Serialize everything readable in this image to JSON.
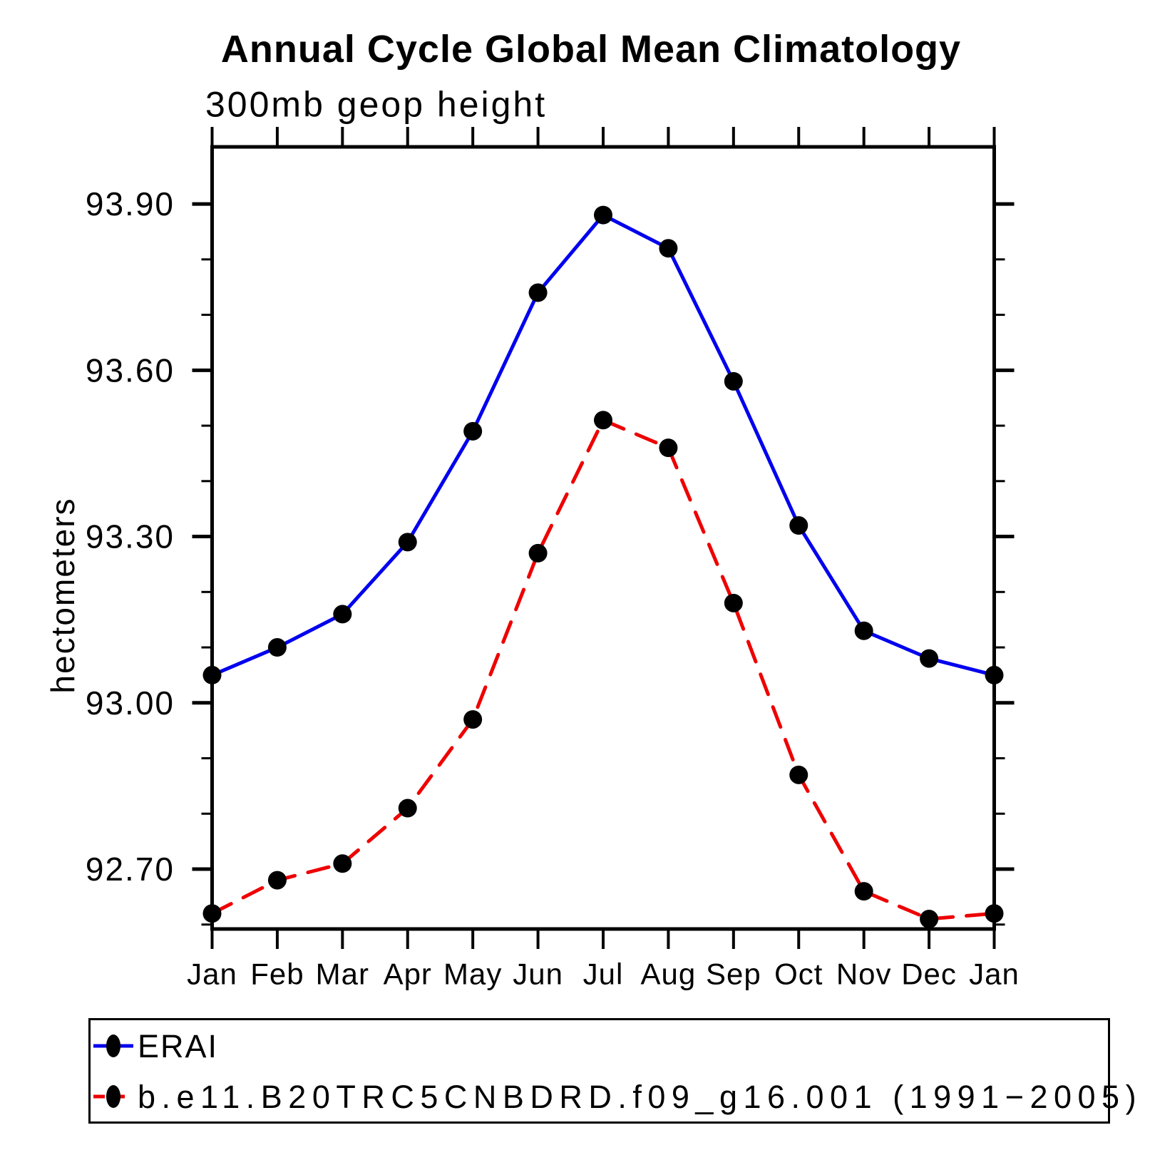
{
  "page": {
    "background": "#ffffff"
  },
  "header": {
    "title": "Annual Cycle Global Mean Climatology",
    "subtitle": "300mb geop height"
  },
  "axes": {
    "y_axis_label": "hectometers",
    "y_major_tick_labels": [
      "93.90",
      "93.60",
      "93.30",
      "93.00",
      "92.70"
    ],
    "x_tick_labels": [
      "Jan",
      "Feb",
      "Mar",
      "Apr",
      "May",
      "Jun",
      "Jul",
      "Aug",
      "Sep",
      "Oct",
      "Nov",
      "Dec",
      "Jan"
    ]
  },
  "legend": {
    "entries": [
      {
        "label": "ERAI",
        "line_style": "solid",
        "color": "#0000ee",
        "marker": "filled-circle-icon"
      },
      {
        "label": "b.e11.B20TRC5CNBDRD.f09_g16.001 (1991−2005)",
        "line_style": "dashed",
        "color": "#ee0000",
        "marker": "filled-circle-icon"
      }
    ]
  },
  "colors": {
    "erai_line": "#0000ee",
    "model_line": "#ee0000",
    "marker": "#000000",
    "axis": "#000000",
    "background": "#ffffff"
  },
  "chart_data": {
    "type": "line",
    "title": "Annual Cycle Global Mean Climatology",
    "subtitle": "300mb geop height",
    "xlabel": "",
    "ylabel": "hectometers",
    "categories": [
      "Jan",
      "Feb",
      "Mar",
      "Apr",
      "May",
      "Jun",
      "Jul",
      "Aug",
      "Sep",
      "Oct",
      "Nov",
      "Dec",
      "Jan"
    ],
    "series": [
      {
        "name": "ERAI",
        "color": "#0000ee",
        "style": "solid",
        "marker": "filled-circle",
        "values": [
          93.05,
          93.1,
          93.16,
          93.29,
          93.49,
          93.74,
          93.88,
          93.82,
          93.58,
          93.32,
          93.13,
          93.08,
          93.05
        ]
      },
      {
        "name": "b.e11.B20TRC5CNBDRD.f09_g16.001 (1991−2005)",
        "color": "#ee0000",
        "style": "dashed",
        "marker": "filled-circle",
        "values": [
          92.62,
          92.68,
          92.71,
          92.81,
          92.97,
          93.27,
          93.51,
          93.46,
          93.18,
          92.87,
          92.66,
          92.61,
          92.62
        ]
      }
    ],
    "ylim": [
      92.592,
      94.003
    ],
    "yticks_major": [
      93.9,
      93.6,
      93.3,
      93.0,
      92.7
    ],
    "yticks_minor": [
      93.8,
      93.7,
      93.5,
      93.4,
      93.2,
      93.1,
      92.9,
      92.8,
      92.6
    ],
    "grid": false,
    "legend_position": "bottom-left-box"
  }
}
